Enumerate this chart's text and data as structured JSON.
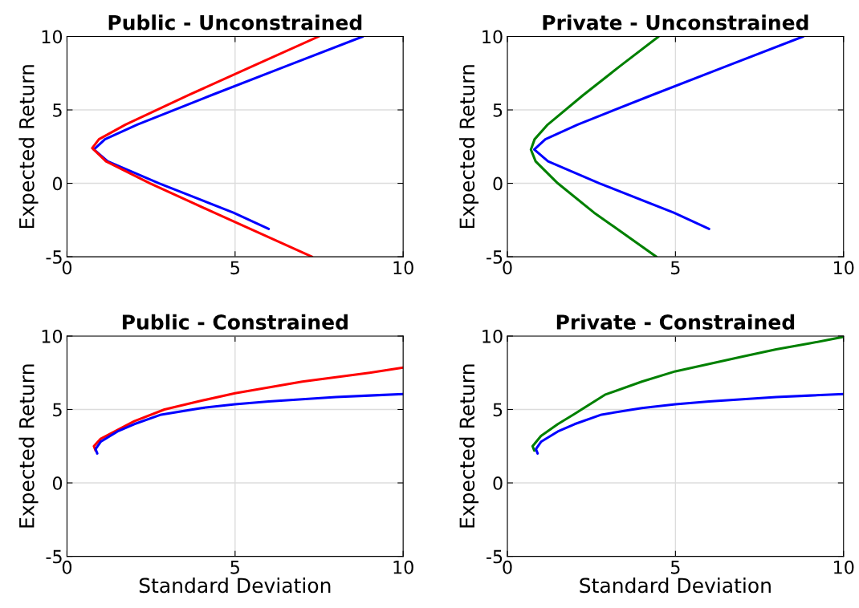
{
  "chart_data": [
    {
      "type": "line",
      "title": "Public - Unconstrained",
      "ylabel": "Expected Return",
      "xlim": [
        0,
        10
      ],
      "ylim": [
        -5,
        10
      ],
      "xticks": [
        0,
        5,
        10
      ],
      "yticks": [
        -5,
        0,
        5,
        10
      ],
      "grid": true,
      "series": [
        {
          "color": "#0000ff",
          "x": [
            8.8,
            6.54,
            4.29,
            2.09,
            1.13,
            0.8,
            1.21,
            2.74,
            4.95,
            6.0
          ],
          "values": [
            10,
            8,
            6,
            4,
            3,
            2.3,
            1.5,
            0,
            -2,
            -3.1
          ]
        },
        {
          "color": "#ff0000",
          "x": [
            7.49,
            5.54,
            3.61,
            1.74,
            0.95,
            0.75,
            1.16,
            2.47,
            4.38,
            7.29
          ],
          "values": [
            10,
            8,
            6,
            4,
            3,
            2.4,
            1.5,
            0,
            -2,
            -5
          ]
        }
      ]
    },
    {
      "type": "line",
      "title": "Private - Unconstrained",
      "ylabel": "Expected Return",
      "xlim": [
        0,
        10
      ],
      "ylim": [
        -5,
        10
      ],
      "xticks": [
        0,
        5,
        10
      ],
      "yticks": [
        -5,
        0,
        5,
        10
      ],
      "grid": true,
      "series": [
        {
          "color": "#0000ff",
          "x": [
            8.8,
            6.54,
            4.29,
            2.09,
            1.13,
            0.8,
            1.21,
            2.74,
            4.95,
            6.0
          ],
          "values": [
            10,
            8,
            6,
            4,
            3,
            2.3,
            1.5,
            0,
            -2,
            -3.1
          ]
        },
        {
          "color": "#008000",
          "x": [
            4.5,
            3.36,
            2.25,
            1.2,
            0.81,
            0.7,
            0.84,
            1.5,
            2.58,
            4.43
          ],
          "values": [
            10,
            8,
            6,
            4,
            3,
            2.3,
            1.5,
            0,
            -2,
            -5
          ]
        }
      ]
    },
    {
      "type": "line",
      "title": "Public - Constrained",
      "xlabel": "Standard Deviation",
      "ylabel": "Expected Return",
      "xlim": [
        0,
        10
      ],
      "ylim": [
        -5,
        10
      ],
      "xticks": [
        0,
        5,
        10
      ],
      "yticks": [
        -5,
        0,
        5,
        10
      ],
      "grid": true,
      "series": [
        {
          "color": "#ff0000",
          "x": [
            0.85,
            0.8,
            1.0,
            1.5,
            2.0,
            2.9,
            4,
            5,
            6,
            7,
            8,
            9,
            10
          ],
          "values": [
            2.2,
            2.5,
            3.0,
            3.6,
            4.2,
            5.0,
            5.6,
            6.1,
            6.5,
            6.9,
            7.2,
            7.5,
            7.85
          ]
        },
        {
          "color": "#0000ff",
          "x": [
            0.9,
            0.85,
            1.0,
            1.5,
            2.0,
            2.8,
            4,
            5,
            6,
            7,
            8,
            9,
            10
          ],
          "values": [
            2.0,
            2.3,
            2.8,
            3.5,
            4.0,
            4.65,
            5.1,
            5.35,
            5.55,
            5.7,
            5.85,
            5.95,
            6.05
          ]
        }
      ]
    },
    {
      "type": "line",
      "title": "Private - Constrained",
      "xlabel": "Standard Deviation",
      "ylabel": "Expected Return",
      "xlim": [
        0,
        10
      ],
      "ylim": [
        -5,
        10
      ],
      "xticks": [
        0,
        5,
        10
      ],
      "yticks": [
        -5,
        0,
        5,
        10
      ],
      "grid": true,
      "series": [
        {
          "color": "#008000",
          "x": [
            0.8,
            0.75,
            1.0,
            1.5,
            2.0,
            2.9,
            4,
            5,
            6,
            7,
            8,
            9,
            10
          ],
          "values": [
            2.2,
            2.5,
            3.2,
            4.0,
            4.7,
            6.0,
            6.9,
            7.6,
            8.1,
            8.6,
            9.1,
            9.5,
            9.95
          ]
        },
        {
          "color": "#0000ff",
          "x": [
            0.9,
            0.85,
            1.0,
            1.5,
            2.0,
            2.8,
            4,
            5,
            6,
            7,
            8,
            9,
            10
          ],
          "values": [
            2.0,
            2.3,
            2.8,
            3.5,
            4.0,
            4.65,
            5.1,
            5.35,
            5.55,
            5.7,
            5.85,
            5.95,
            6.05
          ]
        }
      ]
    }
  ]
}
